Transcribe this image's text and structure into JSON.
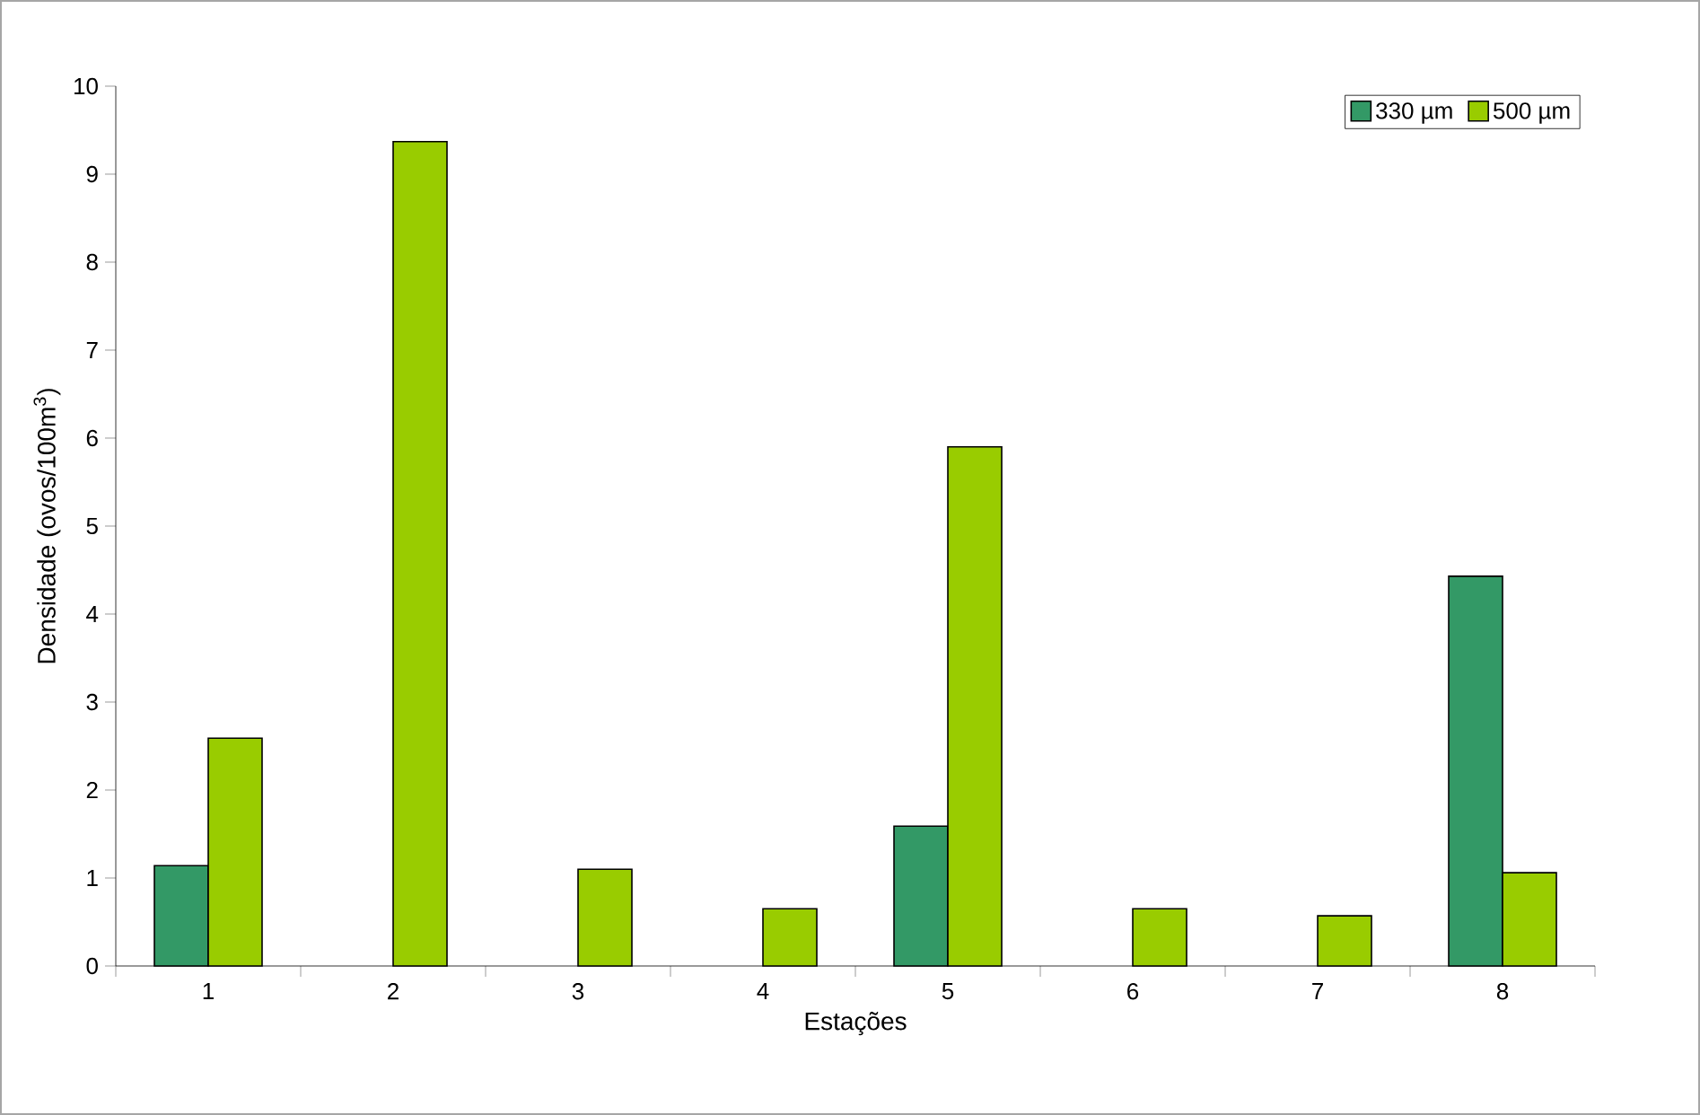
{
  "chart_data": {
    "type": "bar",
    "xlabel": "Estações",
    "ylabel": "Densidade (ovos/100m$^{3}$)",
    "categories": [
      "1",
      "2",
      "3",
      "4",
      "5",
      "6",
      "7",
      "8"
    ],
    "series": [
      {
        "name": "330 µm",
        "color": "#339966",
        "values": [
          1.14,
          null,
          null,
          null,
          1.59,
          null,
          null,
          4.43
        ]
      },
      {
        "name": "500 µm",
        "color": "#99cc00",
        "values": [
          2.59,
          9.37,
          1.1,
          0.65,
          5.9,
          0.65,
          0.57,
          1.06
        ]
      }
    ],
    "ylim": [
      0,
      10
    ],
    "yticks": [
      0,
      1,
      2,
      3,
      4,
      5,
      6,
      7,
      8,
      9,
      10
    ],
    "legend": "top right"
  }
}
